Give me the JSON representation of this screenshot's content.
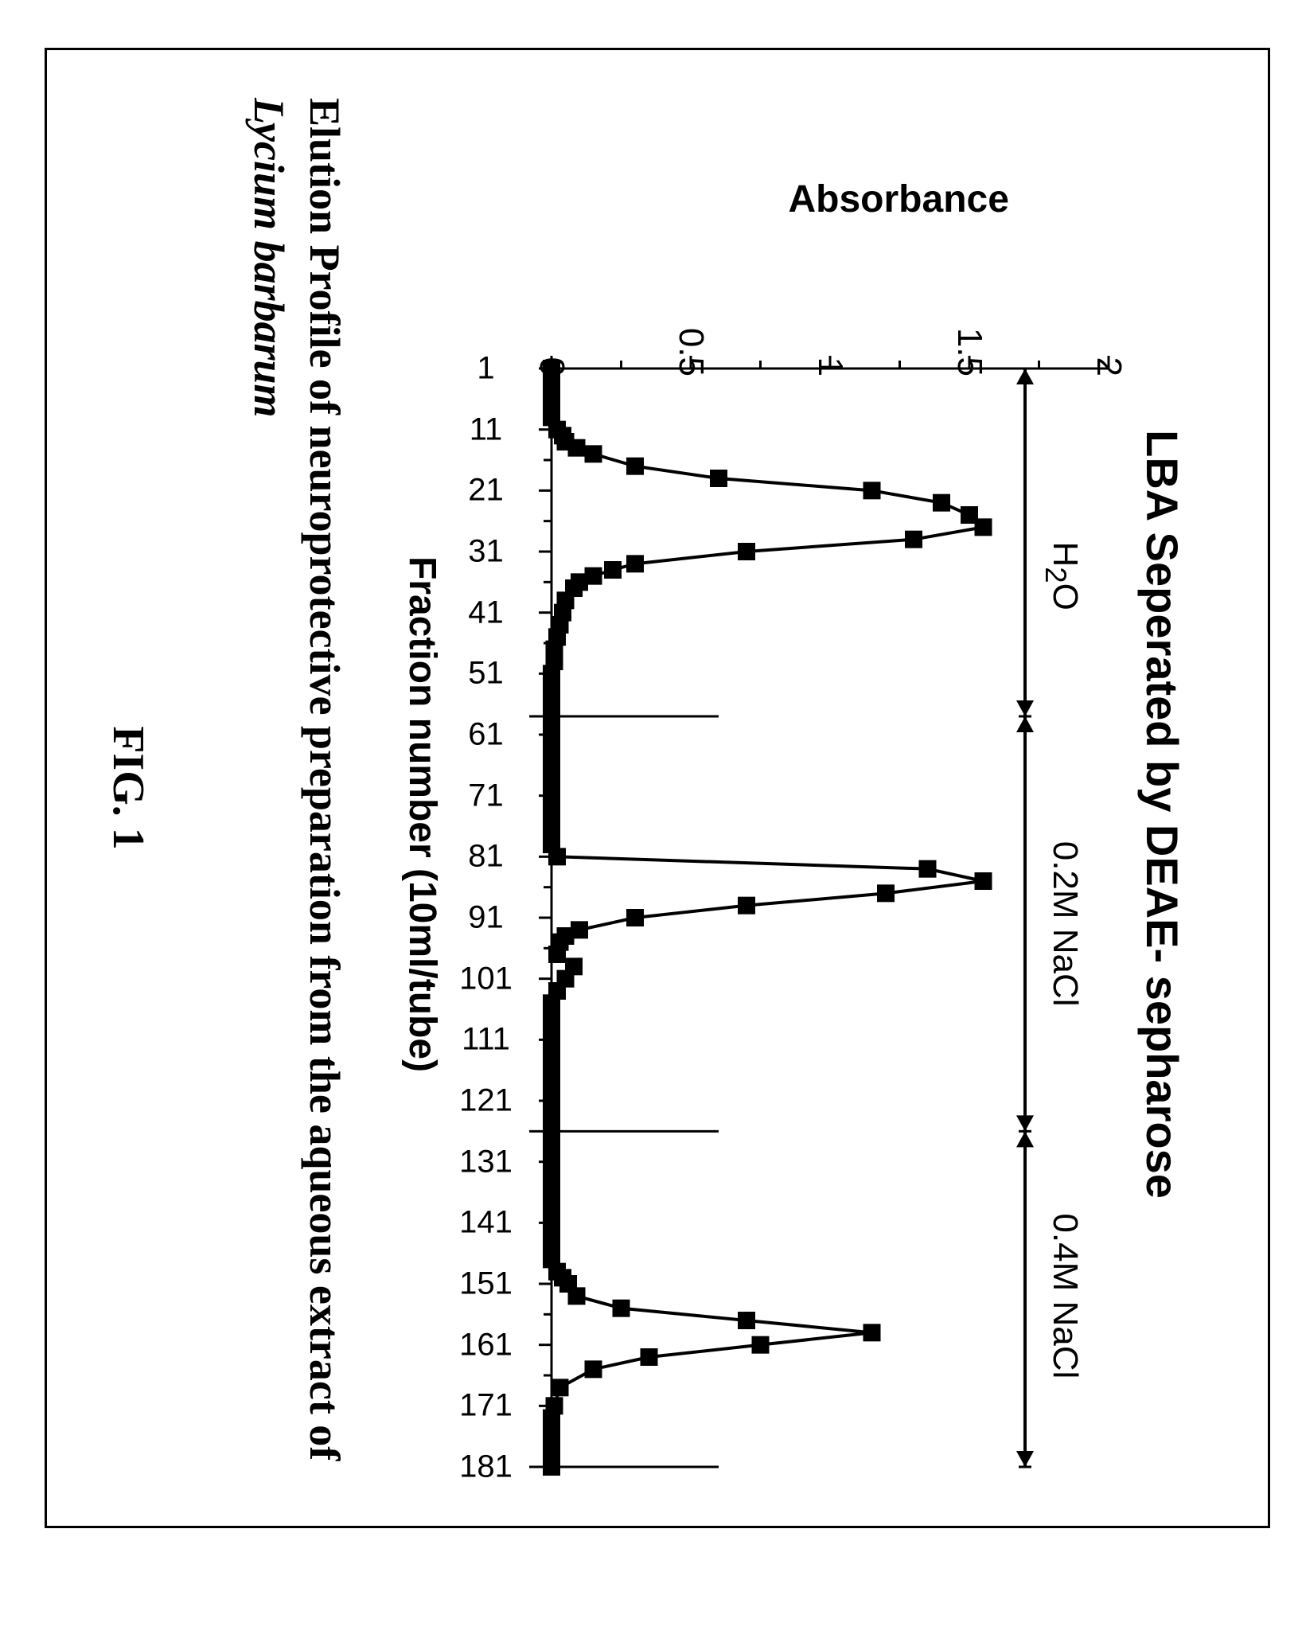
{
  "figure": {
    "outer_frame_color": "#000000",
    "background_color": "#ffffff",
    "chart": {
      "type": "line-scatter",
      "title": "LBA Seperated by DEAE- sepharose",
      "title_fontsize": 56,
      "title_fontfamily": "Arial",
      "title_fontweight": "bold",
      "x_label": "Fraction number (10ml/tube)",
      "y_label": "Absorbance",
      "axis_label_fontsize": 48,
      "axis_label_fontweight": "bold",
      "line_color": "#000000",
      "line_width": 4,
      "marker_style": "square",
      "marker_size": 22,
      "marker_color": "#000000",
      "axis_color": "#000000",
      "axis_width": 3,
      "tick_length_major": 16,
      "tick_length_minor": 10,
      "tick_fontsize": 44,
      "x_tick_rotation": -90,
      "ylim": [
        0,
        2
      ],
      "yticks": [
        0,
        0.5,
        1,
        1.5,
        2
      ],
      "xlim": [
        1,
        181
      ],
      "xticks": [
        1,
        11,
        21,
        31,
        41,
        51,
        61,
        71,
        81,
        91,
        101,
        111,
        121,
        131,
        141,
        151,
        161,
        171,
        181
      ],
      "region_markers": [
        {
          "label": "H₂O",
          "label_html": "H<sub>2</sub>O",
          "x_center": 35,
          "span": [
            1,
            58
          ],
          "divider_x": 58,
          "arrow_y": 1.7
        },
        {
          "label": "0.2M NaCl",
          "x_center": 92,
          "span": [
            58,
            126
          ],
          "divider_x": 126,
          "arrow_y": 1.7
        },
        {
          "label": "0.4M NaCl",
          "x_center": 153,
          "span": [
            126,
            181
          ],
          "divider_x": 181,
          "arrow_y": 1.7
        }
      ],
      "divider_line_ylow": -0.08,
      "divider_line_yhigh": 0.6,
      "data": {
        "x": [
          1,
          3,
          5,
          7,
          9,
          11,
          12,
          13,
          14,
          15,
          17,
          19,
          21,
          23,
          25,
          27,
          29,
          31,
          33,
          34,
          35,
          36,
          37,
          39,
          41,
          43,
          45,
          47,
          49,
          51,
          53,
          55,
          57,
          59,
          61,
          63,
          65,
          67,
          69,
          71,
          73,
          75,
          77,
          79,
          81,
          83,
          85,
          87,
          89,
          91,
          93,
          94,
          95,
          97,
          99,
          101,
          103,
          105,
          107,
          109,
          111,
          113,
          115,
          117,
          119,
          121,
          123,
          125,
          127,
          129,
          131,
          133,
          135,
          137,
          139,
          141,
          143,
          145,
          147,
          149,
          150,
          151,
          153,
          155,
          157,
          159,
          161,
          163,
          165,
          168,
          171,
          173,
          175,
          177,
          179,
          181
        ],
        "y": [
          0.0,
          0.0,
          0.0,
          0.0,
          0.0,
          0.02,
          0.04,
          0.05,
          0.09,
          0.15,
          0.3,
          0.6,
          1.15,
          1.4,
          1.5,
          1.55,
          1.3,
          0.7,
          0.3,
          0.22,
          0.15,
          0.1,
          0.08,
          0.05,
          0.04,
          0.03,
          0.02,
          0.01,
          0.01,
          0.0,
          0.0,
          0.0,
          0.0,
          0.0,
          0.0,
          0.0,
          0.0,
          0.0,
          0.0,
          0.0,
          0.0,
          0.0,
          0.0,
          0.0,
          0.02,
          1.35,
          1.55,
          1.2,
          0.7,
          0.3,
          0.1,
          0.05,
          0.03,
          0.02,
          0.08,
          0.05,
          0.02,
          0.0,
          0.0,
          0.0,
          0.0,
          0.0,
          0.0,
          0.0,
          0.0,
          0.0,
          0.0,
          0.0,
          0.0,
          0.0,
          0.0,
          0.0,
          0.0,
          0.0,
          0.0,
          0.0,
          0.0,
          0.0,
          0.0,
          0.02,
          0.04,
          0.06,
          0.09,
          0.25,
          0.7,
          1.15,
          0.75,
          0.35,
          0.15,
          0.03,
          0.01,
          0.0,
          0.0,
          0.0,
          0.0,
          0.0
        ]
      }
    },
    "caption_line1": "Elution Profile of neuroprotective preparation from the aqueous extract of",
    "caption_line2": "Lycium barbarum",
    "fig_label": "FIG. 1",
    "caption_fontsize": 54,
    "caption_fontfamily": "Times New Roman",
    "fig_label_fontsize": 56
  }
}
